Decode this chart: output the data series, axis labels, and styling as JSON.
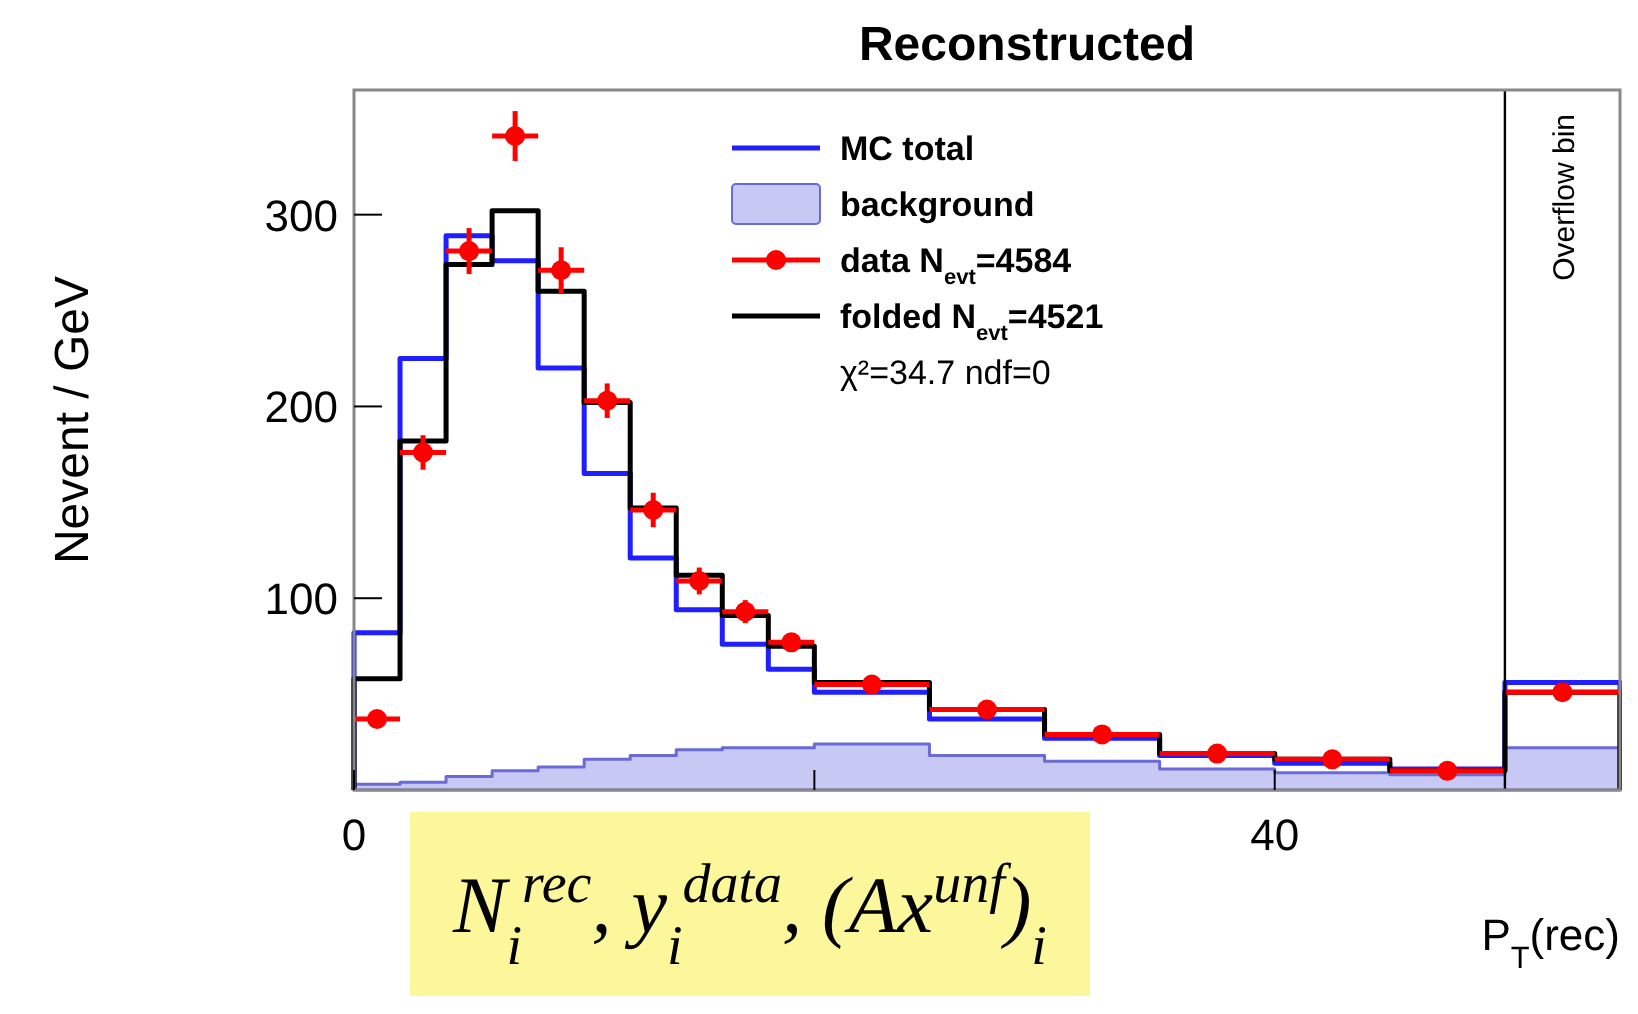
{
  "chart_data": {
    "type": "histogram",
    "title": "Reconstructed",
    "xlabel": "P$_{T}$(rec)",
    "ylabel": "Nevent / GeV",
    "bins": [
      0,
      2,
      4,
      6,
      8,
      10,
      12,
      14,
      16,
      18,
      20,
      25,
      30,
      35,
      40,
      45,
      50,
      55
    ],
    "series": [
      {
        "name": "MC total",
        "type": "histogram",
        "color": "#1f1fff",
        "values": [
          82,
          225,
          289,
          276,
          220,
          165,
          121,
          94,
          76,
          63,
          51,
          37,
          27,
          18,
          14,
          11,
          56
        ]
      },
      {
        "name": "background",
        "type": "area",
        "color": "#c8c8f5",
        "x": [
          0,
          2,
          2,
          4,
          4,
          6,
          6,
          8,
          8,
          10,
          10,
          12,
          12,
          14,
          14,
          16,
          16,
          18,
          18,
          20,
          20,
          25,
          25,
          30,
          30,
          35,
          35,
          40,
          40,
          45,
          45,
          50,
          50,
          55
        ],
        "values": [
          3,
          3,
          4,
          4,
          7,
          7,
          10,
          10,
          12,
          12,
          16,
          16,
          18,
          18,
          21,
          21,
          22,
          22,
          22,
          22,
          24,
          24,
          18,
          18,
          15,
          15,
          11,
          11,
          9,
          9,
          8,
          8,
          22,
          22
        ]
      },
      {
        "name": "data N$_{evt}$=4584",
        "type": "scatter",
        "color": "#ff0000",
        "marker": "circle",
        "x": [
          1,
          3,
          5,
          7,
          9,
          11,
          13,
          15,
          17,
          19,
          22.5,
          27.5,
          32.5,
          37.5,
          42.5,
          47.5,
          52.5
        ],
        "values": [
          37,
          176,
          281,
          341,
          271,
          203,
          146,
          109,
          93,
          77,
          55,
          42,
          29,
          19,
          16,
          10,
          51
        ],
        "errors": [
          null,
          9,
          12,
          13,
          12,
          9,
          9,
          7,
          6,
          null,
          null,
          null,
          null,
          null,
          null,
          null,
          null
        ],
        "xerrors": [
          1,
          1,
          1,
          1,
          1,
          1,
          1,
          1,
          1,
          1,
          2.5,
          2.5,
          2.5,
          2.5,
          2.5,
          2.5,
          2.5
        ]
      },
      {
        "name": "folded N$_{evt}$=4521",
        "type": "histogram",
        "color": "#000000",
        "values": [
          58,
          182,
          274,
          302,
          260,
          202,
          147,
          112,
          91,
          75,
          56,
          42,
          29,
          19,
          16,
          10,
          51
        ]
      }
    ],
    "xlim": [
      0,
      55
    ],
    "ylim": [
      0,
      365
    ],
    "xticks": [
      0,
      {
        "value": 20,
        "label": null
      },
      40
    ],
    "yticks": [
      100,
      200,
      300
    ],
    "ref_lines": [
      {
        "axis": "x",
        "value": 50,
        "label": "Overflow bin",
        "color": "#000000"
      }
    ],
    "annotations": [
      "χ²=34.7 ndf=0",
      "N$_{i}$$^{rec}$, y$_{i}$$^{data}$, (Ax$^{unf}$)$_{i}$"
    ],
    "legend": "top",
    "grid": false
  }
}
